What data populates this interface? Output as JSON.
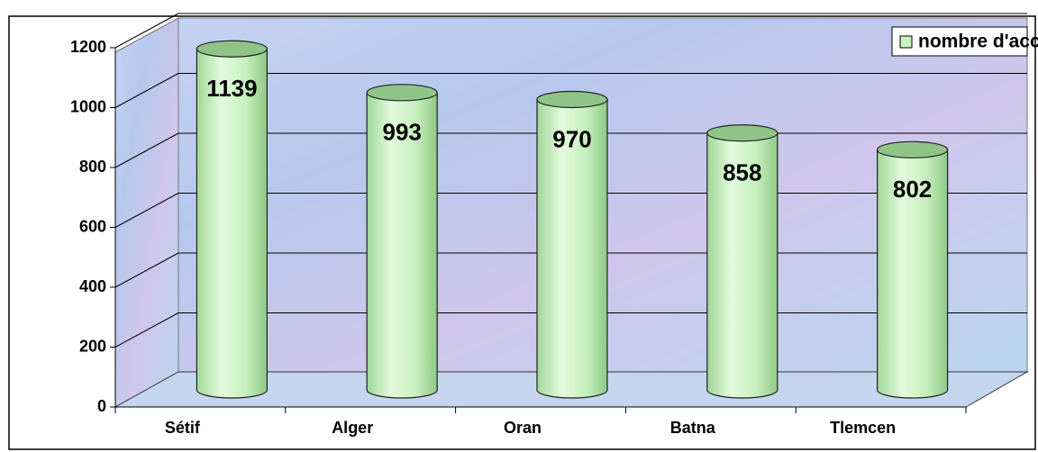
{
  "chart_data": {
    "type": "bar",
    "categories": [
      "Sétif",
      "Alger",
      "Oran",
      "Batna",
      "Tlemcen"
    ],
    "series": [
      {
        "name": "nombre d'accidents",
        "color": "#c8f5bf",
        "values": [
          1139,
          993,
          970,
          858,
          802
        ]
      }
    ],
    "ylim": [
      0,
      1200
    ],
    "yticks": [
      0,
      200,
      400,
      600,
      800,
      1000,
      1200
    ],
    "grid": true,
    "legend": "upper right"
  }
}
